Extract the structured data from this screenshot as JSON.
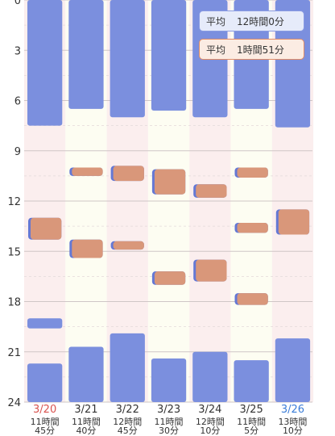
{
  "chart_data": {
    "type": "bar",
    "y_axis": {
      "min": 0,
      "max": 24,
      "ticks": [
        0,
        3,
        6,
        9,
        12,
        15,
        18,
        21,
        24
      ],
      "reversed": true
    },
    "grid": true,
    "days": [
      {
        "date": "3/20",
        "color": "red",
        "total_hours": "11時間",
        "total_minutes": "45分",
        "sleep": [
          [
            0,
            7.5
          ],
          [
            19,
            19.6
          ],
          [
            21.7,
            24
          ]
        ],
        "nap": [
          [
            13,
            14.3
          ]
        ]
      },
      {
        "date": "3/21",
        "color": "normal",
        "total_hours": "11時間",
        "total_minutes": "40分",
        "sleep": [
          [
            0,
            6.5
          ],
          [
            20.7,
            24
          ]
        ],
        "nap": [
          [
            10,
            10.5
          ],
          [
            14.3,
            15.4
          ]
        ]
      },
      {
        "date": "3/22",
        "color": "normal",
        "total_hours": "12時間",
        "total_minutes": "45分",
        "sleep": [
          [
            0,
            7
          ],
          [
            19.9,
            24
          ]
        ],
        "nap": [
          [
            9.9,
            10.8
          ],
          [
            14.4,
            14.9
          ]
        ]
      },
      {
        "date": "3/23",
        "color": "normal",
        "total_hours": "11時間",
        "total_minutes": "30分",
        "sleep": [
          [
            0,
            6.6
          ],
          [
            21.4,
            24
          ]
        ],
        "nap": [
          [
            10.1,
            11.6
          ],
          [
            16.2,
            17
          ]
        ]
      },
      {
        "date": "3/24",
        "color": "normal",
        "total_hours": "12時間",
        "total_minutes": "10分",
        "sleep": [
          [
            0,
            7
          ],
          [
            21,
            24
          ]
        ],
        "nap": [
          [
            11,
            11.8
          ],
          [
            15.5,
            16.8
          ]
        ]
      },
      {
        "date": "3/25",
        "color": "normal",
        "total_hours": "11時間",
        "total_minutes": "5分",
        "sleep": [
          [
            0,
            6.5
          ],
          [
            21.5,
            24
          ]
        ],
        "nap": [
          [
            10,
            10.6
          ],
          [
            13.3,
            13.9
          ],
          [
            17.5,
            18.2
          ]
        ]
      },
      {
        "date": "3/26",
        "color": "blue",
        "total_hours": "13時間",
        "total_minutes": "10分",
        "sleep": [
          [
            0,
            7.6
          ],
          [
            20.2,
            24
          ]
        ],
        "nap": [
          [
            12.5,
            14
          ]
        ]
      }
    ],
    "legend": [
      {
        "label": "平均",
        "value": "12時間0分",
        "series": "sleep"
      },
      {
        "label": "平均",
        "value": "1時間51分",
        "series": "nap"
      }
    ]
  },
  "colors": {
    "sleep": "#7b8fde",
    "sleep_edge": "#6478d4",
    "nap": "#d9977a",
    "stripe_pink": "#fbeeee",
    "stripe_cream": "#fdfdf2",
    "grid_major": "#cfc6c6",
    "grid_minor": "#e3dada",
    "axis_text": "#333333",
    "date_red": "#d9534f",
    "date_blue": "#3b7dd8"
  }
}
